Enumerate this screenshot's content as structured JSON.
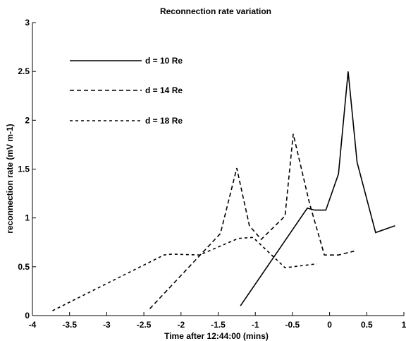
{
  "chart_data": {
    "type": "line",
    "title": "Reconnection rate variation",
    "xlabel": "Time after 12:44:00 (mins)",
    "ylabel": "reconnection rate (mV m-1)",
    "xlim": [
      -4,
      1
    ],
    "ylim": [
      0,
      3
    ],
    "x_ticks": [
      -4,
      -3.5,
      -3,
      -2.5,
      -2,
      -1.5,
      -1,
      -0.5,
      0,
      0.5,
      1
    ],
    "x_tick_labels": [
      "-4",
      "-3.5",
      "-3",
      "-2.5",
      "-2",
      "-1.5",
      "-1",
      "-0.5",
      "0",
      "0.5",
      "1"
    ],
    "y_ticks": [
      0,
      0.5,
      1,
      1.5,
      2,
      2.5,
      3
    ],
    "y_tick_labels": [
      "0",
      "0.5",
      "1",
      "1.5",
      "2",
      "2.5",
      "3"
    ],
    "grid": false,
    "legend_position": "upper-left",
    "series": [
      {
        "name": "d = 10 Re",
        "style": "solid",
        "x": [
          -1.2,
          -0.3,
          -0.2,
          -0.05,
          0.12,
          0.25,
          0.37,
          0.62,
          0.88
        ],
        "y": [
          0.1,
          1.1,
          1.08,
          1.08,
          1.45,
          2.5,
          1.57,
          0.85,
          0.92
        ]
      },
      {
        "name": "d = 14 Re",
        "style": "dashed",
        "x": [
          -2.42,
          -1.47,
          -1.25,
          -1.08,
          -0.92,
          -0.6,
          -0.49,
          -0.27,
          -0.07,
          0.12,
          0.33
        ],
        "y": [
          0.07,
          0.84,
          1.51,
          0.92,
          0.78,
          1.02,
          1.86,
          1.15,
          0.62,
          0.62,
          0.66
        ]
      },
      {
        "name": "d = 18 Re",
        "style": "short-dashed",
        "x": [
          -3.73,
          -2.23,
          -2.12,
          -1.75,
          -1.23,
          -1.03,
          -0.6,
          -0.17
        ],
        "y": [
          0.05,
          0.62,
          0.63,
          0.62,
          0.79,
          0.8,
          0.49,
          0.53
        ]
      }
    ]
  }
}
